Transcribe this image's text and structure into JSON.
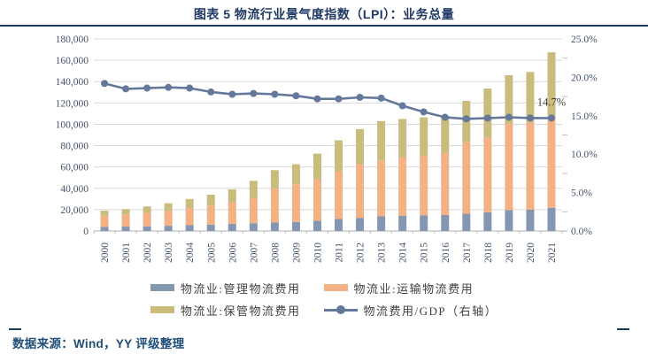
{
  "title": "图表 5 物流行业景气度指数（LPI）：业务总量",
  "source": "数据来源：Wind，YY 评级整理",
  "colors": {
    "accent_navy": "#1F3864",
    "source_text": "#1F4E79",
    "axis_text": "#44546A",
    "gridline": "#D9D9D9",
    "axis_line": "#BFBFBF",
    "annotation_text": "#404040"
  },
  "chart_data": {
    "type": "bar",
    "subtype": "stacked-bars-with-right-axis-line",
    "categories": [
      "2000",
      "2001",
      "2002",
      "2003",
      "2004",
      "2005",
      "2006",
      "2007",
      "2008",
      "2009",
      "2010",
      "2011",
      "2012",
      "2013",
      "2014",
      "2015",
      "2016",
      "2017",
      "2018",
      "2019",
      "2020",
      "2021"
    ],
    "series": [
      {
        "name": "物流业:管理物流费用",
        "type": "bar",
        "stack": true,
        "color": "#8497B0",
        "values": [
          3800,
          4100,
          4400,
          4900,
          5400,
          6000,
          6700,
          7300,
          7900,
          8500,
          9600,
          11200,
          12300,
          13700,
          14300,
          14600,
          15000,
          16200,
          17500,
          19500,
          20000,
          21800
        ]
      },
      {
        "name": "物流业:运输物流费用",
        "type": "bar",
        "stack": true,
        "color": "#F4B183",
        "values": [
          10500,
          11400,
          12300,
          13800,
          15800,
          17900,
          20200,
          23800,
          32100,
          35300,
          38800,
          44800,
          50300,
          52500,
          54500,
          55500,
          58000,
          67000,
          70100,
          81000,
          82000,
          85200
        ]
      },
      {
        "name": "物流业:保管物流费用",
        "type": "bar",
        "stack": true,
        "color": "#C9BC7C",
        "values": [
          4700,
          5000,
          6300,
          7300,
          8800,
          10100,
          12100,
          15900,
          17000,
          18700,
          24100,
          29000,
          32900,
          36800,
          36200,
          36400,
          35000,
          38800,
          45900,
          45500,
          47000,
          60500
        ]
      },
      {
        "name": "物流费用/GDP（右轴）",
        "type": "line",
        "axis": "right",
        "color": "#64789B",
        "values": [
          19.2,
          18.5,
          18.6,
          18.7,
          18.6,
          18.1,
          17.8,
          17.9,
          17.8,
          17.6,
          17.2,
          17.2,
          17.4,
          17.3,
          16.3,
          15.5,
          14.8,
          14.6,
          14.7,
          14.8,
          14.7,
          14.7
        ]
      }
    ],
    "left_axis": {
      "min": 0,
      "max": 180000,
      "step": 20000,
      "tick_labels": [
        "0",
        "20,000",
        "40,000",
        "60,000",
        "80,000",
        "100,000",
        "120,000",
        "140,000",
        "160,000",
        "180,000"
      ]
    },
    "right_axis": {
      "min": 0,
      "max": 25,
      "step": 5,
      "tick_labels": [
        "0.0%",
        "5.0%",
        "10.0%",
        "15.0%",
        "20.0%",
        "25.0%"
      ]
    },
    "annotation": {
      "text": "14.7%",
      "category": "2021"
    },
    "grid": true,
    "legend_position": "bottom",
    "legend_rows": [
      [
        0,
        1
      ],
      [
        2,
        3
      ]
    ]
  }
}
